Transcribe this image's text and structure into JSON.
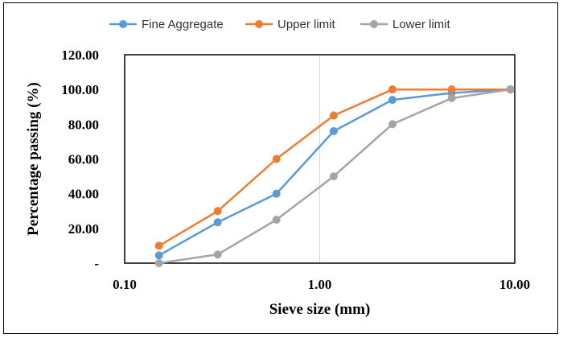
{
  "chart_data": {
    "type": "line",
    "xscale": "log",
    "xlim": [
      0.1,
      10
    ],
    "ylim": [
      0,
      120
    ],
    "xlabel": "Sieve size (mm)",
    "ylabel": "Percentage passing (%)",
    "xticks": [
      "0.10",
      "1.00",
      "10.00"
    ],
    "yticks": [
      "-",
      "20.00",
      "40.00",
      "60.00",
      "80.00",
      "100.00",
      "120.00"
    ],
    "grid": "vertical",
    "legend_position": "top",
    "series": [
      {
        "name": "Fine Aggregate",
        "color": "#5B9BD5",
        "x": [
          0.15,
          0.3,
          0.6,
          1.18,
          2.36,
          4.75,
          9.5
        ],
        "y": [
          4.5,
          23.5,
          40,
          76,
          94,
          98,
          100
        ]
      },
      {
        "name": "Upper limit",
        "color": "#ED7D31",
        "x": [
          0.15,
          0.3,
          0.6,
          1.18,
          2.36,
          4.75,
          9.5
        ],
        "y": [
          10,
          30,
          60,
          85,
          100,
          100,
          100
        ]
      },
      {
        "name": "Lower limit",
        "color": "#A5A5A5",
        "x": [
          0.15,
          0.3,
          0.6,
          1.18,
          2.36,
          4.75,
          9.5
        ],
        "y": [
          0,
          5,
          25,
          50,
          80,
          95,
          100
        ]
      }
    ]
  }
}
